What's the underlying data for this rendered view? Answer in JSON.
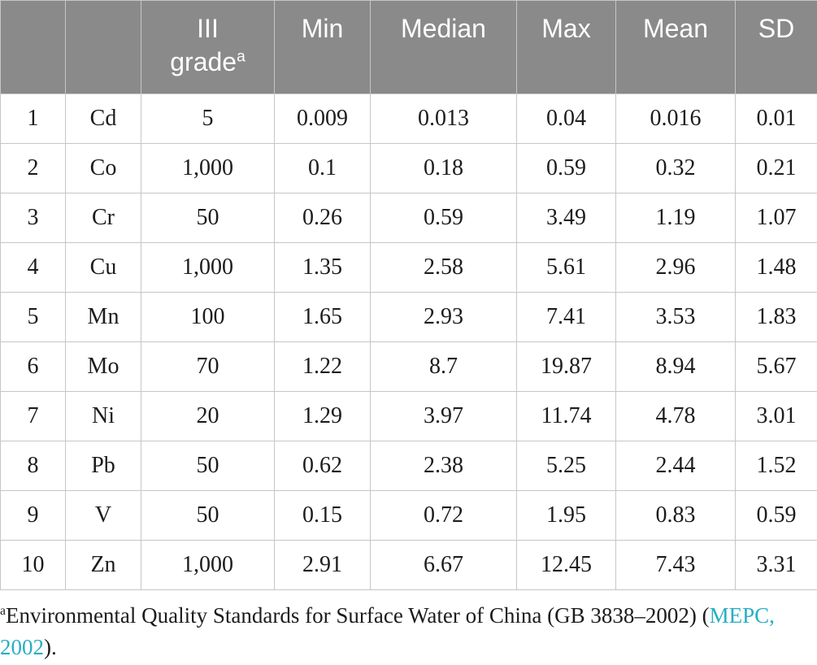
{
  "colors": {
    "header_background": "#8a8a8a",
    "header_text": "#ffffff",
    "body_text": "#1c1c1c",
    "border": "#c6c6c6",
    "link": "#27aec5"
  },
  "table": {
    "headers": [
      "",
      "",
      "III grade",
      "Min",
      "Median",
      "Max",
      "Mean",
      "SD"
    ],
    "grade_header": {
      "line1": "III",
      "line2": "grade",
      "superscript": "a"
    },
    "column_keys": [
      "num",
      "element",
      "grade",
      "min",
      "median",
      "max",
      "mean",
      "sd"
    ],
    "rows": [
      {
        "num": "1",
        "element": "Cd",
        "grade": "5",
        "min": "0.009",
        "median": "0.013",
        "max": "0.04",
        "mean": "0.016",
        "sd": "0.01"
      },
      {
        "num": "2",
        "element": "Co",
        "grade": "1,000",
        "min": "0.1",
        "median": "0.18",
        "max": "0.59",
        "mean": "0.32",
        "sd": "0.21"
      },
      {
        "num": "3",
        "element": "Cr",
        "grade": "50",
        "min": "0.26",
        "median": "0.59",
        "max": "3.49",
        "mean": "1.19",
        "sd": "1.07"
      },
      {
        "num": "4",
        "element": "Cu",
        "grade": "1,000",
        "min": "1.35",
        "median": "2.58",
        "max": "5.61",
        "mean": "2.96",
        "sd": "1.48"
      },
      {
        "num": "5",
        "element": "Mn",
        "grade": "100",
        "min": "1.65",
        "median": "2.93",
        "max": "7.41",
        "mean": "3.53",
        "sd": "1.83"
      },
      {
        "num": "6",
        "element": "Mo",
        "grade": "70",
        "min": "1.22",
        "median": "8.7",
        "max": "19.87",
        "mean": "8.94",
        "sd": "5.67"
      },
      {
        "num": "7",
        "element": "Ni",
        "grade": "20",
        "min": "1.29",
        "median": "3.97",
        "max": "11.74",
        "mean": "4.78",
        "sd": "3.01"
      },
      {
        "num": "8",
        "element": "Pb",
        "grade": "50",
        "min": "0.62",
        "median": "2.38",
        "max": "5.25",
        "mean": "2.44",
        "sd": "1.52"
      },
      {
        "num": "9",
        "element": "V",
        "grade": "50",
        "min": "0.15",
        "median": "0.72",
        "max": "1.95",
        "mean": "0.83",
        "sd": "0.59"
      },
      {
        "num": "10",
        "element": "Zn",
        "grade": "1,000",
        "min": "2.91",
        "median": "6.67",
        "max": "12.45",
        "mean": "7.43",
        "sd": "3.31"
      }
    ]
  },
  "footnote": {
    "marker": "a",
    "text_before": "Environmental Quality Standards for Surface Water of China (GB 3838–2002) (",
    "link": "MEPC, 2002",
    "text_after": ")."
  }
}
